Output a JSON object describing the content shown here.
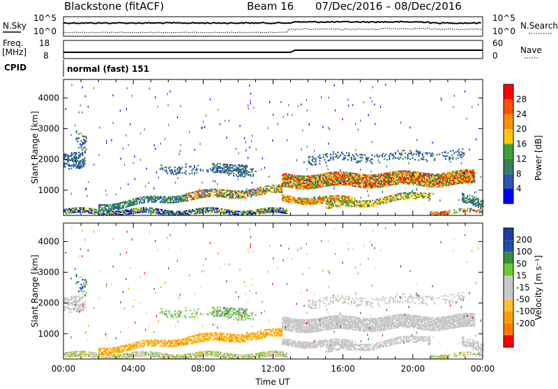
{
  "header": {
    "station": "Blackstone (fitACF)",
    "beam": "Beam 16",
    "dates": "07/Dec/2016 – 08/Dec/2016"
  },
  "top_panels": {
    "nsky_label": "N.Sky",
    "nsky_tick_high": "10^5",
    "nsky_tick_low": "10^0",
    "nsearch_label": "N.Search",
    "nsearch_tick_high": "10^5",
    "nsearch_tick_low": "10^0",
    "freq_label": "Freq.",
    "freq_unit": "[MHz]",
    "freq_tick_high": "18",
    "freq_tick_low": "8",
    "nave_label": "Nave",
    "nave_tick_high": "60",
    "nave_tick_low": "0",
    "cpid_label": "CPID",
    "cpid_value": "normal (fast) 151"
  },
  "colors": {
    "power": [
      "#0000ff",
      "#2e55b8",
      "#3c7f57",
      "#3ca03c",
      "#ffc800",
      "#ff8c00",
      "#ff5000",
      "#ff0000"
    ],
    "velocity": [
      "#ff0000",
      "#ff7b00",
      "#ff9d00",
      "#ffc12b",
      "#c8c8c8",
      "#c8c8c8",
      "#66cc33",
      "#3c8c3c",
      "#1f4fa8",
      "#1f3aa8"
    ]
  },
  "chart_data": [
    {
      "type": "heatmap",
      "name": "power",
      "ylabel": "Slant Range [km]",
      "ylim": [
        180,
        4600
      ],
      "yticks": [
        "1000",
        "2000",
        "3000",
        "4000"
      ],
      "xlim": [
        "00:00",
        "24:00"
      ],
      "colorbar": {
        "label": "Power [dB]",
        "range": [
          0,
          32
        ],
        "tick_labels": [
          "4",
          "8",
          "12",
          "16",
          "20",
          "24",
          "28"
        ]
      }
    },
    {
      "type": "heatmap",
      "name": "velocity",
      "ylabel": "Slant Range [km]",
      "ylim": [
        180,
        4600
      ],
      "yticks": [
        "1000",
        "2000",
        "3000",
        "4000"
      ],
      "xlim": [
        "00:00",
        "24:00"
      ],
      "xticks": [
        "00:00",
        "04:00",
        "08:00",
        "12:00",
        "16:00",
        "20:00",
        "00:00"
      ],
      "xlabel": "Time UT",
      "colorbar": {
        "label": "Velocity [m s⁻¹]",
        "range": [
          -250,
          250
        ],
        "tick_labels": [
          "200",
          "100",
          "50",
          "15",
          "-15",
          "-50",
          "-100",
          "-200"
        ]
      }
    }
  ]
}
